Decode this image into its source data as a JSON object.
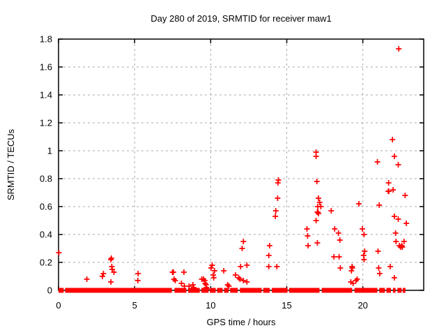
{
  "window": {
    "background": "#ffffff"
  },
  "chart_data": {
    "type": "scatter",
    "title": "Day 280 of 2019, SRMTID for receiver maw1",
    "xlabel": "GPS time / hours",
    "ylabel": "SRMTID / TECUs",
    "xlim": [
      0,
      24
    ],
    "ylim": [
      0,
      1.8
    ],
    "xticks": [
      0,
      5,
      10,
      15,
      20
    ],
    "xtick_labels": [
      "0",
      "5",
      "10",
      "15",
      "20"
    ],
    "yticks": [
      0,
      0.2,
      0.4,
      0.6,
      0.8,
      1.0,
      1.2,
      1.4,
      1.6,
      1.8
    ],
    "ytick_labels": [
      "0",
      "0.2",
      "0.4",
      "0.6",
      "0.8",
      "1",
      "1.2",
      "1.4",
      "1.6",
      "1.8"
    ],
    "grid": true,
    "grid_style": "dashed",
    "grid_color": "#aaaaaa",
    "border_color": "#000000",
    "legend": "none",
    "marker": "plus",
    "marker_color": "#ff0000",
    "series_name": "SRMTID",
    "points": [
      [
        0.02,
        0.27
      ],
      [
        1.86,
        0.08
      ],
      [
        2.88,
        0.1
      ],
      [
        2.95,
        0.12
      ],
      [
        3.44,
        0.22
      ],
      [
        3.47,
        0.23
      ],
      [
        3.5,
        0.17
      ],
      [
        3.53,
        0.15
      ],
      [
        3.64,
        0.13
      ],
      [
        3.44,
        0.06
      ],
      [
        5.21,
        0.07
      ],
      [
        5.23,
        0.12
      ],
      [
        7.49,
        0.13
      ],
      [
        7.55,
        0.13
      ],
      [
        7.59,
        0.08
      ],
      [
        7.67,
        0.07
      ],
      [
        8.08,
        0.05
      ],
      [
        8.24,
        0.13
      ],
      [
        8.27,
        0.03
      ],
      [
        8.58,
        0.03
      ],
      [
        8.83,
        0.04
      ],
      [
        8.88,
        0.02
      ],
      [
        9.41,
        0.08
      ],
      [
        9.52,
        0.08
      ],
      [
        9.61,
        0.07
      ],
      [
        9.64,
        0.05
      ],
      [
        9.69,
        0.04
      ],
      [
        9.72,
        0.02
      ],
      [
        9.75,
        0.01
      ],
      [
        10.02,
        0.16
      ],
      [
        10.1,
        0.18
      ],
      [
        10.17,
        0.11
      ],
      [
        10.2,
        0.09
      ],
      [
        10.25,
        0.14
      ],
      [
        10.86,
        0.14
      ],
      [
        11.11,
        0.04
      ],
      [
        11.2,
        0.03
      ],
      [
        11.63,
        0.11
      ],
      [
        11.84,
        0.09
      ],
      [
        11.92,
        0.08
      ],
      [
        12.15,
        0.07
      ],
      [
        12.38,
        0.06
      ],
      [
        11.97,
        0.17
      ],
      [
        12.38,
        0.18
      ],
      [
        12.07,
        0.3
      ],
      [
        12.15,
        0.35
      ],
      [
        13.82,
        0.17
      ],
      [
        13.82,
        0.25
      ],
      [
        13.87,
        0.32
      ],
      [
        14.35,
        0.17
      ],
      [
        14.25,
        0.53
      ],
      [
        14.28,
        0.57
      ],
      [
        14.4,
        0.66
      ],
      [
        14.42,
        0.77
      ],
      [
        14.45,
        0.79
      ],
      [
        16.33,
        0.44
      ],
      [
        16.37,
        0.39
      ],
      [
        16.4,
        0.32
      ],
      [
        16.93,
        0.99
      ],
      [
        16.93,
        0.96
      ],
      [
        16.98,
        0.78
      ],
      [
        17.01,
        0.34
      ],
      [
        16.93,
        0.5
      ],
      [
        17.01,
        0.56
      ],
      [
        17.04,
        0.56
      ],
      [
        17.08,
        0.55
      ],
      [
        17.08,
        0.66
      ],
      [
        17.16,
        0.63
      ],
      [
        17.04,
        0.6
      ],
      [
        17.24,
        0.6
      ],
      [
        17.92,
        0.57
      ],
      [
        18.15,
        0.44
      ],
      [
        18.4,
        0.41
      ],
      [
        18.49,
        0.36
      ],
      [
        18.1,
        0.24
      ],
      [
        18.44,
        0.24
      ],
      [
        18.52,
        0.16
      ],
      [
        19.21,
        0.06
      ],
      [
        19.25,
        0.14
      ],
      [
        19.29,
        0.17
      ],
      [
        19.31,
        0.16
      ],
      [
        19.36,
        0.05
      ],
      [
        19.55,
        0.07
      ],
      [
        19.63,
        0.08
      ],
      [
        19.74,
        0.62
      ],
      [
        19.97,
        0.44
      ],
      [
        20.05,
        0.25
      ],
      [
        20.08,
        0.4
      ],
      [
        20.08,
        0.22
      ],
      [
        20.12,
        0.28
      ],
      [
        20.96,
        0.92
      ],
      [
        21.0,
        0.28
      ],
      [
        21.04,
        0.16
      ],
      [
        21.08,
        0.61
      ],
      [
        21.11,
        0.12
      ],
      [
        21.67,
        0.71
      ],
      [
        21.71,
        0.71
      ],
      [
        21.69,
        0.77
      ],
      [
        21.8,
        0.17
      ],
      [
        21.95,
        1.08
      ],
      [
        21.99,
        0.72
      ],
      [
        22.07,
        0.96
      ],
      [
        22.07,
        0.53
      ],
      [
        22.07,
        0.09
      ],
      [
        22.15,
        0.41
      ],
      [
        22.18,
        0.35
      ],
      [
        22.33,
        0.9
      ],
      [
        22.33,
        0.51
      ],
      [
        22.36,
        1.73
      ],
      [
        22.4,
        0.32
      ],
      [
        22.48,
        0.31
      ],
      [
        22.56,
        0.32
      ],
      [
        22.6,
        0.31
      ],
      [
        22.71,
        0.35
      ],
      [
        22.78,
        0.68
      ],
      [
        22.86,
        0.48
      ]
    ],
    "baseline_band": {
      "y": 0,
      "segments": [
        [
          0.0,
          0.34
        ],
        [
          0.43,
          7.45
        ],
        [
          7.62,
          8.4
        ],
        [
          8.52,
          9.28
        ],
        [
          9.38,
          9.86
        ],
        [
          9.95,
          10.33
        ],
        [
          10.42,
          10.78
        ],
        [
          10.88,
          11.18
        ],
        [
          11.28,
          11.78
        ],
        [
          11.92,
          13.35
        ],
        [
          13.45,
          13.88
        ],
        [
          14.02,
          15.05
        ],
        [
          15.15,
          17.15
        ],
        [
          17.3,
          19.3
        ],
        [
          19.45,
          20.95
        ],
        [
          21.08,
          21.45
        ],
        [
          21.55,
          21.85
        ],
        [
          21.98,
          22.15
        ],
        [
          22.28,
          22.55
        ],
        [
          22.62,
          22.8
        ]
      ]
    }
  }
}
